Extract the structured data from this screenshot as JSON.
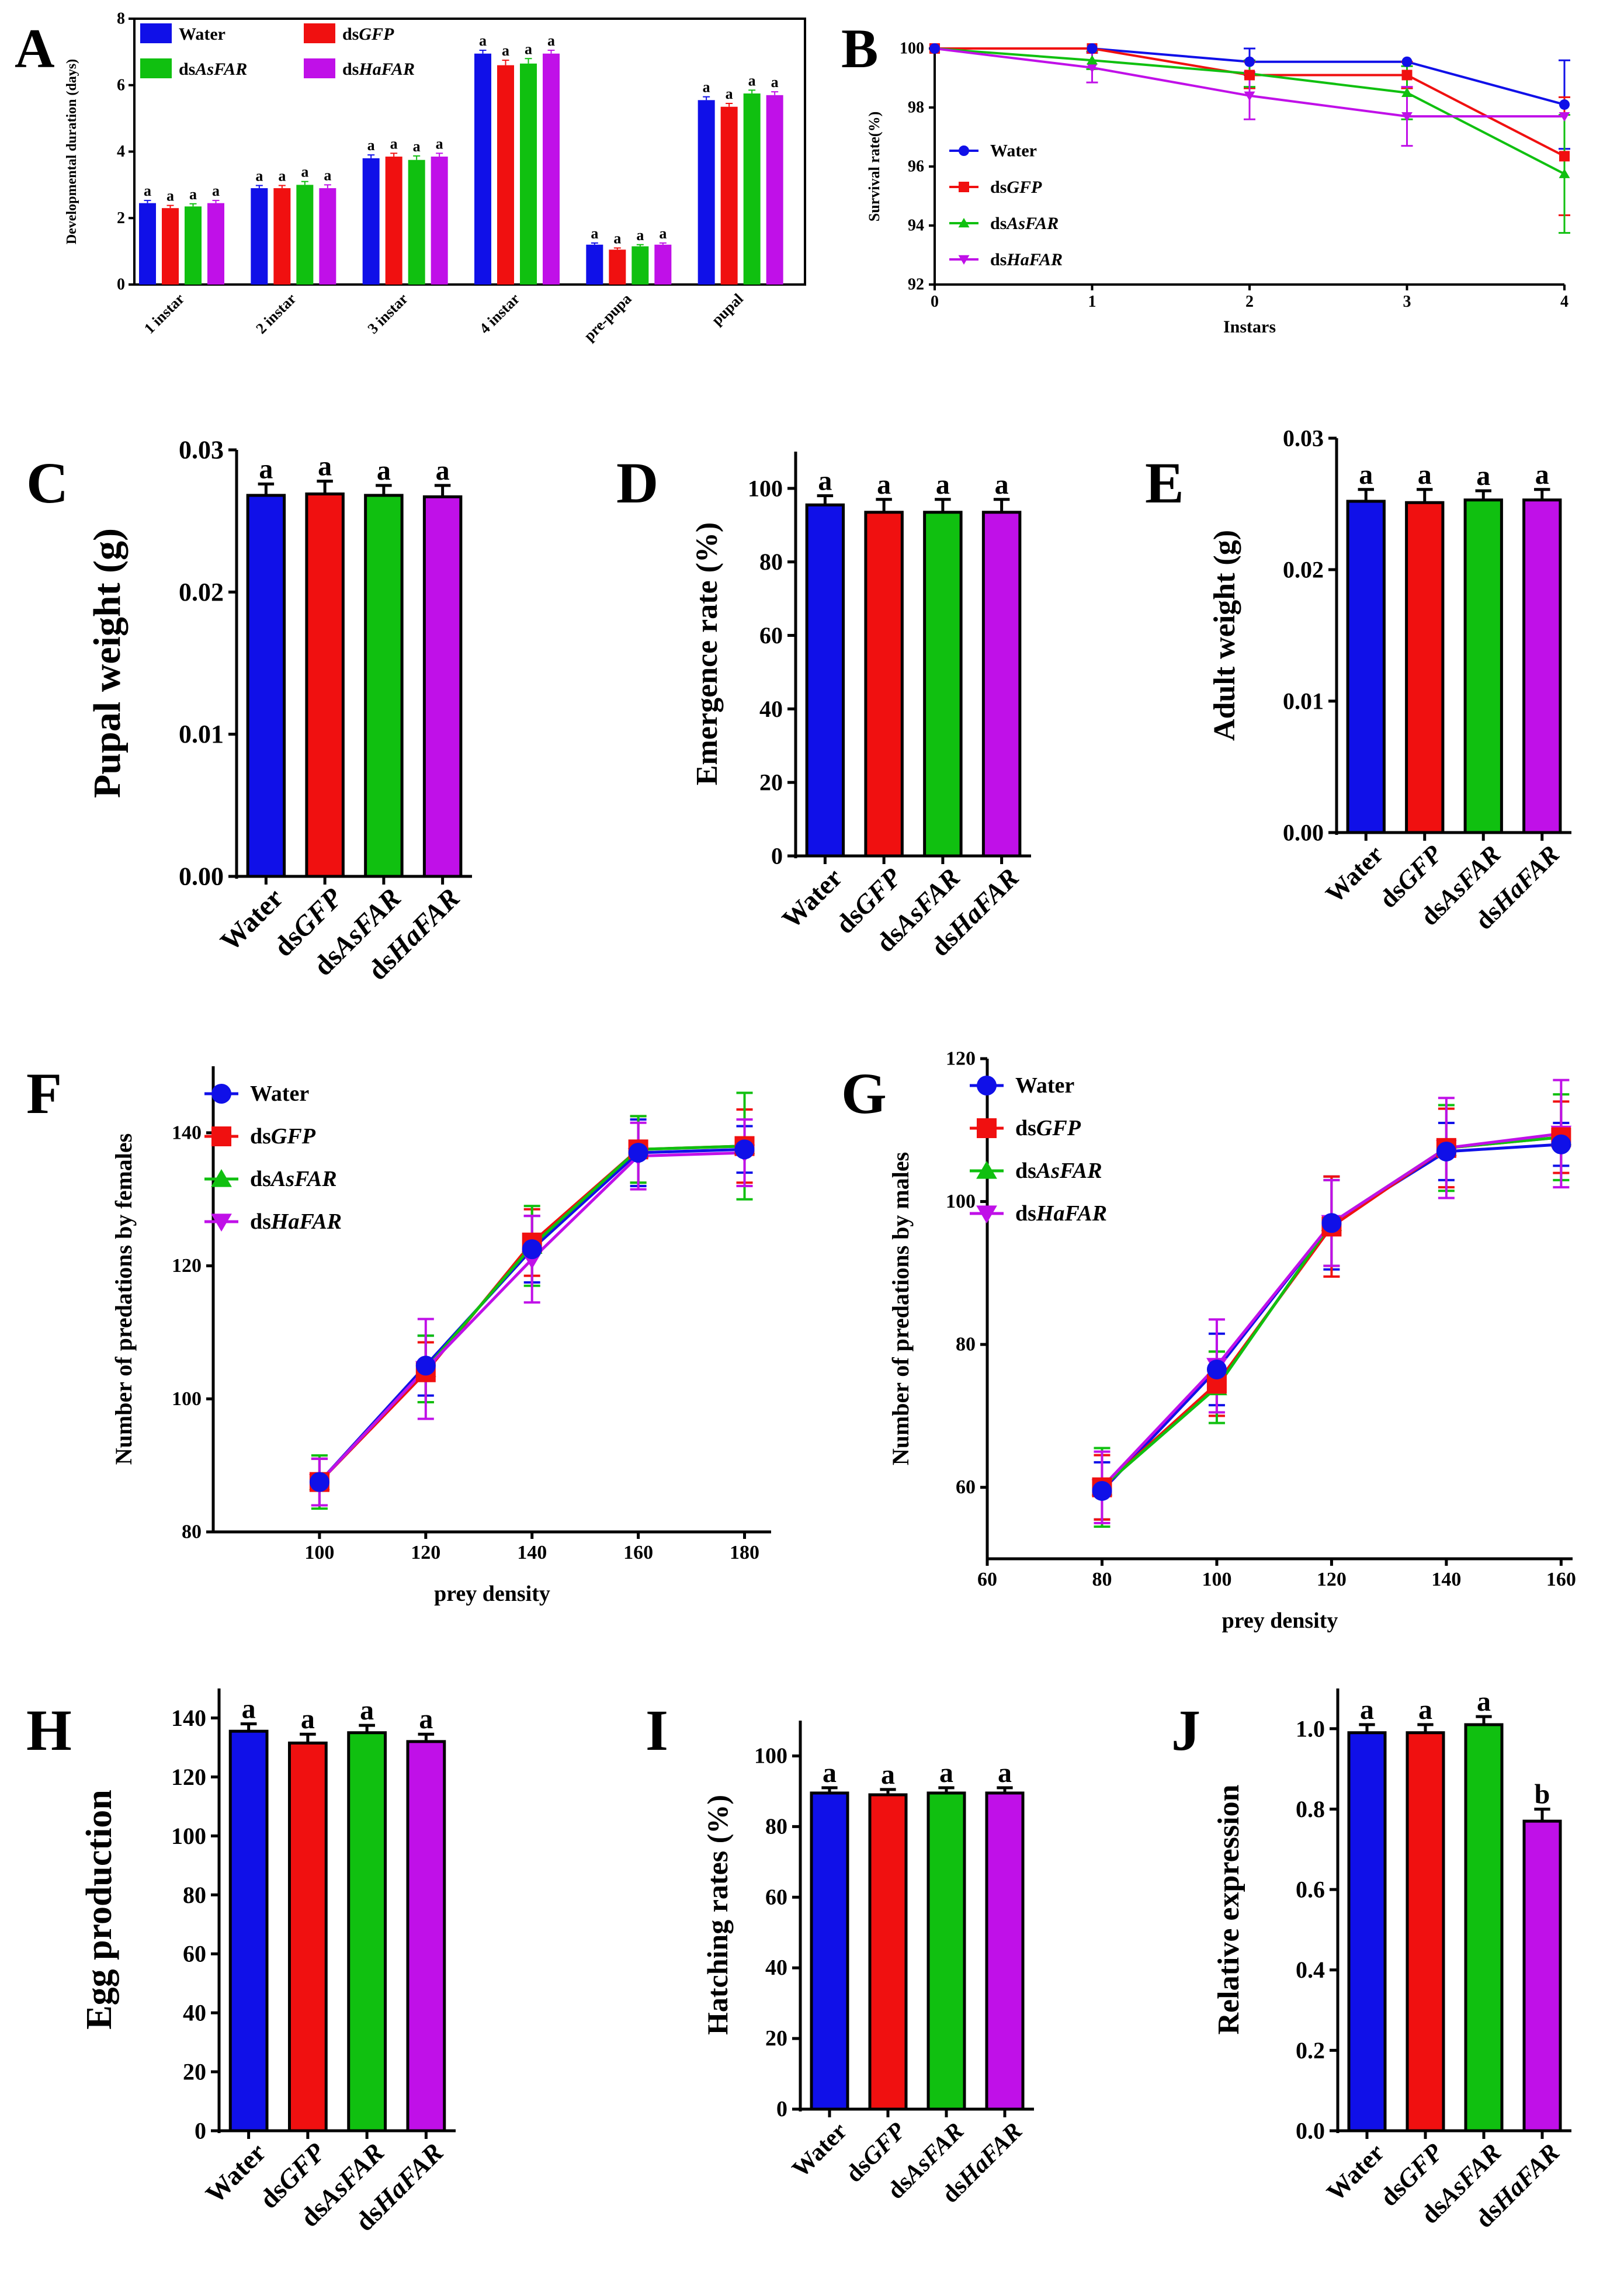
{
  "colors": {
    "water": "#1010e8",
    "dsgfp": "#f01010",
    "dsasfar": "#10c010",
    "dshafar": "#c010e8",
    "axis": "#000000"
  },
  "treatments": [
    {
      "prefix": "Water",
      "italic": "",
      "color": "#1010e8"
    },
    {
      "prefix": "ds",
      "italic": "GFP",
      "color": "#f01010"
    },
    {
      "prefix": "ds",
      "italic": "AsFAR",
      "color": "#10c010"
    },
    {
      "prefix": "ds",
      "italic": "HaFAR",
      "color": "#c010e8"
    }
  ],
  "chart_data": [
    {
      "id": "A",
      "type": "bar",
      "panel_label": "A",
      "ylabel": "Developmental duration (days)",
      "xlabel": "",
      "ylim": [
        0,
        8
      ],
      "yticks": [
        "0",
        "2",
        "4",
        "6",
        "8"
      ],
      "categories": [
        "1 instar",
        "2 instar",
        "3 instar",
        "4 instar",
        "pre-pupa",
        "pupal"
      ],
      "legend": [
        "Water",
        "dsGFP",
        "dsAsFAR",
        "dsHaFAR"
      ],
      "series": [
        {
          "name": "Water",
          "values": [
            2.45,
            2.9,
            3.8,
            6.95,
            1.2,
            5.55
          ],
          "errors": [
            0.08,
            0.08,
            0.1,
            0.1,
            0.05,
            0.1
          ],
          "letters": [
            "a",
            "a",
            "a",
            "a",
            "a",
            "a"
          ]
        },
        {
          "name": "dsGFP",
          "values": [
            2.3,
            2.9,
            3.85,
            6.6,
            1.05,
            5.35
          ],
          "errors": [
            0.08,
            0.08,
            0.1,
            0.15,
            0.05,
            0.1
          ],
          "letters": [
            "a",
            "a",
            "a",
            "a",
            "a",
            "a"
          ]
        },
        {
          "name": "dsAsFAR",
          "values": [
            2.35,
            3.0,
            3.75,
            6.65,
            1.15,
            5.75
          ],
          "errors": [
            0.08,
            0.1,
            0.12,
            0.15,
            0.05,
            0.1
          ],
          "letters": [
            "a",
            "a",
            "a",
            "a",
            "a",
            "a"
          ]
        },
        {
          "name": "dsHaFAR",
          "values": [
            2.45,
            2.9,
            3.85,
            6.95,
            1.2,
            5.7
          ],
          "errors": [
            0.08,
            0.1,
            0.1,
            0.1,
            0.05,
            0.1
          ],
          "letters": [
            "a",
            "a",
            "a",
            "a",
            "a",
            "a"
          ]
        }
      ]
    },
    {
      "id": "B",
      "type": "line",
      "panel_label": "B",
      "ylabel": "Survival rate(%)",
      "xlabel": "Instars",
      "xlim": [
        0,
        4
      ],
      "ylim": [
        92,
        100
      ],
      "xticks": [
        "0",
        "1",
        "2",
        "3",
        "4"
      ],
      "yticks": [
        "92",
        "94",
        "96",
        "98",
        "100"
      ],
      "x": [
        0,
        1,
        2,
        3,
        4
      ],
      "legend": [
        "Water",
        "dsGFP",
        "dsAsFAR",
        "dsHaFAR"
      ],
      "series": [
        {
          "name": "Water",
          "marker": "circle",
          "values": [
            100,
            100,
            99.55,
            99.55,
            98.1
          ],
          "errors": [
            0,
            0,
            0.45,
            0,
            1.5
          ]
        },
        {
          "name": "dsGFP",
          "marker": "square",
          "values": [
            100,
            100,
            99.1,
            99.1,
            96.35
          ],
          "errors": [
            0,
            0,
            0.45,
            0.45,
            2.0
          ]
        },
        {
          "name": "dsAsFAR",
          "marker": "triangle",
          "values": [
            100,
            99.6,
            99.15,
            98.5,
            95.75
          ],
          "errors": [
            0,
            0.3,
            0.45,
            0.9,
            2.0
          ]
        },
        {
          "name": "dsHaFAR",
          "marker": "triangle-down",
          "values": [
            100,
            99.35,
            98.4,
            97.7,
            97.7
          ],
          "errors": [
            0,
            0.5,
            0.8,
            1.0,
            0
          ]
        }
      ]
    },
    {
      "id": "C",
      "type": "bar",
      "panel_label": "C",
      "ylabel": "Pupal weight (g)",
      "ylim": [
        0,
        0.03
      ],
      "yticks": [
        "0.00",
        "0.01",
        "0.02",
        "0.03"
      ],
      "categories": [
        "Water",
        "dsGFP",
        "dsAsFAR",
        "dsHaFAR"
      ],
      "values": [
        0.0268,
        0.0269,
        0.0268,
        0.0267
      ],
      "errors": [
        0.0008,
        0.0009,
        0.0007,
        0.0008
      ],
      "letters": [
        "a",
        "a",
        "a",
        "a"
      ]
    },
    {
      "id": "D",
      "type": "bar",
      "panel_label": "D",
      "ylabel": "Emergence rate (%)",
      "ylim": [
        0,
        110
      ],
      "yticks": [
        "0",
        "20",
        "40",
        "60",
        "80",
        "100"
      ],
      "categories": [
        "Water",
        "dsGFP",
        "dsAsFAR",
        "dsHaFAR"
      ],
      "values": [
        95.5,
        93.5,
        93.5,
        93.5
      ],
      "errors": [
        2.5,
        3.5,
        3.5,
        3.5
      ],
      "letters": [
        "a",
        "a",
        "a",
        "a"
      ]
    },
    {
      "id": "E",
      "type": "bar",
      "panel_label": "E",
      "ylabel": "Adult weight (g)",
      "ylim": [
        0,
        0.03
      ],
      "yticks": [
        "0.00",
        "0.01",
        "0.02",
        "0.03"
      ],
      "categories": [
        "Water",
        "dsGFP",
        "dsAsFAR",
        "dsHaFAR"
      ],
      "values": [
        0.0252,
        0.0251,
        0.0253,
        0.0253
      ],
      "errors": [
        0.0009,
        0.001,
        0.0007,
        0.0008
      ],
      "letters": [
        "a",
        "a",
        "a",
        "a"
      ]
    },
    {
      "id": "F",
      "type": "line",
      "panel_label": "F",
      "ylabel": "Number of predations by females",
      "xlabel": "prey density",
      "xlim": [
        80,
        185
      ],
      "ylim": [
        80,
        150
      ],
      "xticks": [
        "100",
        "120",
        "140",
        "160",
        "180"
      ],
      "yticks": [
        "80",
        "100",
        "120",
        "140"
      ],
      "x": [
        100,
        120,
        140,
        160,
        180
      ],
      "legend": [
        "Water",
        "dsGFP",
        "dsAsFAR",
        "dsHaFAR"
      ],
      "series": [
        {
          "name": "Water",
          "marker": "circle",
          "values": [
            87.5,
            105,
            122.5,
            137,
            137.5
          ],
          "errors": [
            3.5,
            4.5,
            5,
            5,
            3.5
          ]
        },
        {
          "name": "dsGFP",
          "marker": "square",
          "values": [
            87.5,
            104,
            123.5,
            137.5,
            138
          ],
          "errors": [
            3.5,
            4.5,
            5,
            5,
            5.5
          ]
        },
        {
          "name": "dsAsFAR",
          "marker": "triangle",
          "values": [
            87.5,
            104.5,
            123,
            137.5,
            138
          ],
          "errors": [
            4,
            5,
            6,
            5,
            8
          ]
        },
        {
          "name": "dsHaFAR",
          "marker": "triangle-down",
          "values": [
            87.5,
            104.5,
            121,
            136.5,
            137
          ],
          "errors": [
            3.5,
            7.5,
            6.5,
            5,
            5
          ]
        }
      ]
    },
    {
      "id": "G",
      "type": "line",
      "panel_label": "G",
      "ylabel": "Number of predations by males",
      "xlabel": "prey density",
      "xlim": [
        60,
        162
      ],
      "ylim": [
        50,
        120
      ],
      "xticks": [
        "60",
        "80",
        "100",
        "120",
        "140",
        "160"
      ],
      "yticks": [
        "60",
        "80",
        "100",
        "120"
      ],
      "x": [
        80,
        100,
        120,
        140,
        160
      ],
      "legend": [
        "Water",
        "dsGFP",
        "dsAsFAR",
        "dsHaFAR"
      ],
      "series": [
        {
          "name": "Water",
          "marker": "circle",
          "values": [
            59.5,
            76.5,
            97,
            107,
            108
          ],
          "errors": [
            4,
            5,
            6.5,
            4,
            3
          ]
        },
        {
          "name": "dsGFP",
          "marker": "square",
          "values": [
            60,
            74.5,
            96.5,
            107.5,
            109
          ],
          "errors": [
            4.5,
            4.5,
            7,
            5.5,
            5
          ]
        },
        {
          "name": "dsAsFAR",
          "marker": "triangle",
          "values": [
            60,
            74,
            97,
            107.5,
            109
          ],
          "errors": [
            5.5,
            5,
            6,
            6,
            6
          ]
        },
        {
          "name": "dsHaFAR",
          "marker": "triangle-down",
          "values": [
            60,
            77,
            97,
            107.5,
            109.5
          ],
          "errors": [
            5,
            6.5,
            6,
            7,
            7.5
          ]
        }
      ]
    },
    {
      "id": "H",
      "type": "bar",
      "panel_label": "H",
      "ylabel": "Egg production",
      "ylim": [
        0,
        150
      ],
      "yticks": [
        "0",
        "20",
        "40",
        "60",
        "80",
        "100",
        "120",
        "140"
      ],
      "categories": [
        "Water",
        "dsGFP",
        "dsAsFAR",
        "dsHaFAR"
      ],
      "values": [
        135.5,
        131.5,
        135,
        132
      ],
      "errors": [
        2.5,
        3,
        2.5,
        2.5
      ],
      "letters": [
        "a",
        "a",
        "a",
        "a"
      ]
    },
    {
      "id": "I",
      "type": "bar",
      "panel_label": "I",
      "ylabel": "Hatching rates (%)",
      "ylim": [
        0,
        110
      ],
      "yticks": [
        "0",
        "20",
        "40",
        "60",
        "80",
        "100"
      ],
      "categories": [
        "Water",
        "dsGFP",
        "dsAsFAR",
        "dsHaFAR"
      ],
      "values": [
        89.5,
        89,
        89.5,
        89.5
      ],
      "errors": [
        1.5,
        1.5,
        1.5,
        1.5
      ],
      "letters": [
        "a",
        "a",
        "a",
        "a"
      ]
    },
    {
      "id": "J",
      "type": "bar",
      "panel_label": "J",
      "ylabel": "Relative expression",
      "ylim": [
        0,
        1.1
      ],
      "yticks": [
        "0.0",
        "0.2",
        "0.4",
        "0.6",
        "0.8",
        "1.0"
      ],
      "categories": [
        "Water",
        "dsGFP",
        "dsAsFAR",
        "dsHaFAR"
      ],
      "values": [
        0.99,
        0.99,
        1.01,
        0.77
      ],
      "errors": [
        0.02,
        0.02,
        0.02,
        0.03
      ],
      "letters": [
        "a",
        "a",
        "a",
        "b"
      ]
    }
  ]
}
